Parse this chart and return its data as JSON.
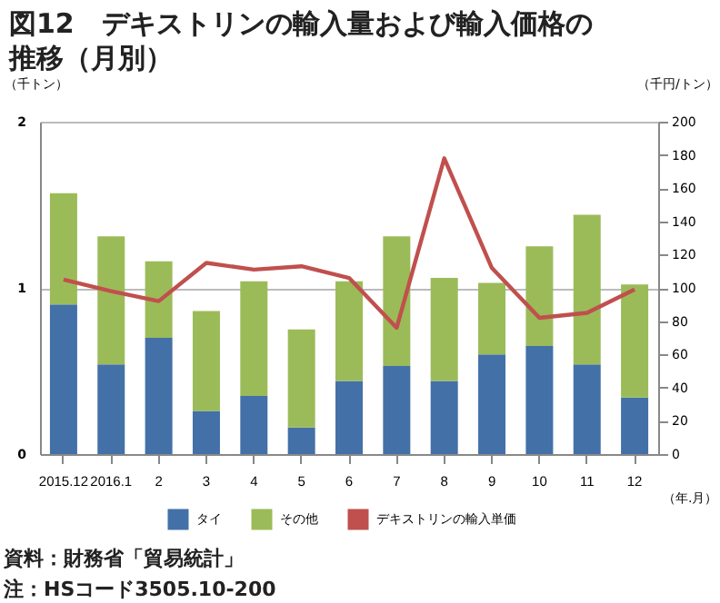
{
  "chart_data": {
    "type": "bar",
    "title": "図12　デキストリンの輸入量および輸入価格の推移（月別）",
    "categories": [
      "2015.12",
      "2016.1",
      "2",
      "3",
      "4",
      "5",
      "6",
      "7",
      "8",
      "9",
      "10",
      "11",
      "12"
    ],
    "stacked": true,
    "series": [
      {
        "name": "タイ",
        "color": "#4470a8",
        "values": [
          0.9,
          0.54,
          0.7,
          0.26,
          0.35,
          0.16,
          0.44,
          0.53,
          0.44,
          0.6,
          0.65,
          0.54,
          0.34
        ]
      },
      {
        "name": "その他",
        "color": "#9bbb59",
        "values": [
          0.67,
          0.77,
          0.46,
          0.6,
          0.69,
          0.59,
          0.6,
          0.78,
          0.62,
          0.43,
          0.6,
          0.9,
          0.68
        ]
      },
      {
        "name": "デキストリンの輸入単価",
        "color": "#c0504d",
        "type": "line",
        "axis": "y2",
        "values": [
          105,
          98,
          92,
          115,
          111,
          113,
          106,
          76,
          178,
          112,
          82,
          85,
          99
        ]
      }
    ],
    "ylabel": "（千トン）",
    "y2label": "（千円/トン）",
    "xlabel": "（年.月）",
    "ylim": [
      0,
      2
    ],
    "yticks": [
      0,
      1,
      2
    ],
    "y2lim": [
      0,
      200
    ],
    "y2ticks": [
      0,
      20,
      40,
      60,
      80,
      100,
      120,
      140,
      160,
      180,
      200
    ],
    "grid": "y",
    "legend": "bottom",
    "annotations": [
      "資料：財務省「貿易統計」",
      "　注：HSコード3505.10-200"
    ]
  }
}
